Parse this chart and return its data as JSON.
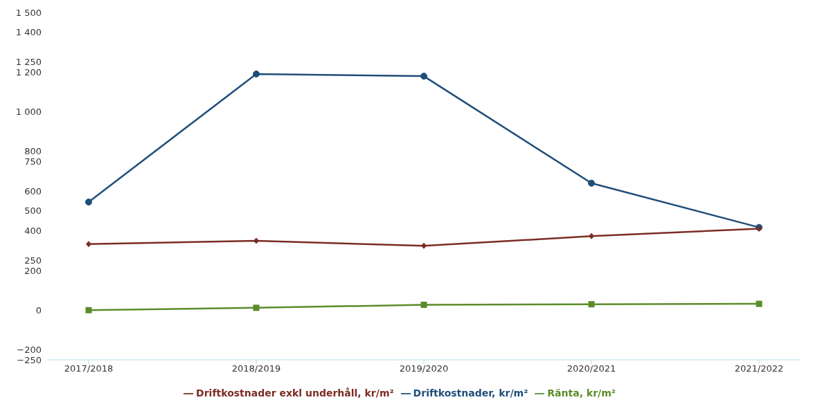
{
  "chart_data": {
    "type": "line",
    "categories": [
      "2017/2018",
      "2018/2019",
      "2019/2020",
      "2020/2021",
      "2021/2022"
    ],
    "series": [
      {
        "name": "Driftkostnader, kr/m²",
        "color": "#1f4e79",
        "marker": "circle",
        "values": [
          545,
          1190,
          1179,
          640,
          417
        ]
      },
      {
        "name": "Driftkostnader exkl underhåll, kr/m²",
        "color": "#7b2c23",
        "marker": "diamond",
        "values": [
          333,
          350,
          324,
          373,
          411
        ]
      },
      {
        "name": "Ränta, kr/m²",
        "color": "#5b8c2a",
        "marker": "square",
        "values": [
          0,
          12,
          27,
          30,
          32
        ]
      }
    ],
    "ylim": [
      -250,
      1500
    ],
    "yticks": [
      {
        "value": -250,
        "label": "−250"
      },
      {
        "value": -200,
        "label": "−200"
      },
      0,
      200,
      250,
      400,
      500,
      600,
      750,
      800,
      {
        "value": 1000,
        "label": "1 000"
      },
      {
        "value": 1200,
        "label": "1 200"
      },
      {
        "value": 1250,
        "label": "1 250"
      },
      {
        "value": 1400,
        "label": "1 400"
      },
      {
        "value": 1500,
        "label": "1 500"
      }
    ],
    "legend": "bottom",
    "line_style": "solid"
  }
}
